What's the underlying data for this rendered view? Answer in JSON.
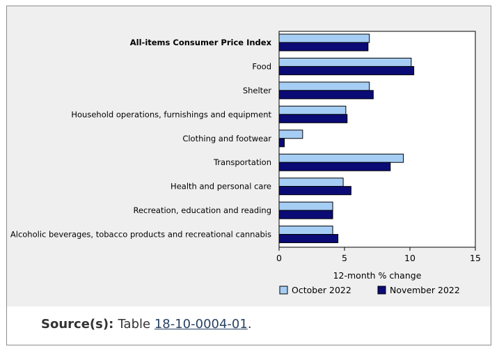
{
  "colors": {
    "panel_bg": "#efefef",
    "series_oct": "#a6cef5",
    "series_nov": "#0b0b76",
    "bar_stroke": "#000000",
    "link": "#284162"
  },
  "chart_data": {
    "type": "bar",
    "orientation": "horizontal",
    "categories": [
      "All-items Consumer Price Index",
      "Food",
      "Shelter",
      "Household operations, furnishings and equipment",
      "Clothing and footwear",
      "Transportation",
      "Health and personal care",
      "Recreation, education and reading",
      "Alcoholic beverages, tobacco products and recreational cannabis"
    ],
    "bold_category_index": 0,
    "series": [
      {
        "name": "October 2022",
        "values": [
          6.9,
          10.1,
          6.9,
          5.1,
          1.8,
          9.5,
          4.9,
          4.1,
          4.1
        ]
      },
      {
        "name": "November 2022",
        "values": [
          6.8,
          10.3,
          7.2,
          5.2,
          0.4,
          8.5,
          5.5,
          4.1,
          4.5
        ]
      }
    ],
    "xlabel": "12-month % change",
    "ylabel": "",
    "xlim": [
      0,
      15
    ],
    "xticks": [
      0,
      5,
      10,
      15
    ],
    "grid": false,
    "legend_position": "bottom"
  },
  "source": {
    "label": "Source(s):",
    "prefix": "Table",
    "link_text": "18-10-0004-01",
    "suffix": "."
  }
}
